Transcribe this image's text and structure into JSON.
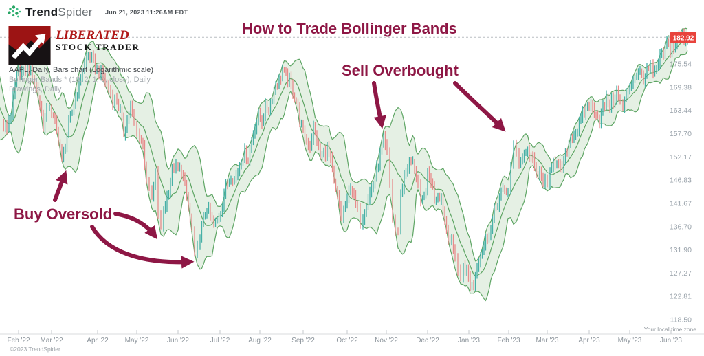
{
  "header": {
    "brand_bold": "Trend",
    "brand_light": "Spider",
    "timestamp": "Jun 21, 2023 11:26AM EDT"
  },
  "watermark": {
    "line1": "LIBERATED",
    "line2": "STOCK TRADER"
  },
  "legend": {
    "line1": "AAPL, Daily, Bars chart (Logarithmic scale)",
    "line2": "Bollinger Bands * (10, 2, 1, 0, close), Daily",
    "line3": "Drawings, Daily"
  },
  "annotations": {
    "title": "How to Trade Bollinger Bands",
    "sell": "Sell Overbought",
    "buy": "Buy Oversold",
    "color": "#8e1745"
  },
  "footer": {
    "timezone_note": "Your local time zone",
    "copyright": "©2023 TrendSpider"
  },
  "chart_data": {
    "type": "bar",
    "title": "AAPL Daily bars with Bollinger Bands (10, 2) on a logarithmic scale",
    "symbol": "AAPL",
    "timeframe": "Daily",
    "scale": "Logarithmic",
    "indicator": "Bollinger Bands (10, 2, 1, 0, close)",
    "y_axis": {
      "scale": "log",
      "current_price": "182.92",
      "ticks": [
        175.54,
        169.38,
        163.44,
        157.7,
        152.17,
        146.83,
        141.67,
        136.7,
        131.9,
        127.27,
        122.81,
        118.5
      ]
    },
    "x_axis": {
      "labels": [
        "Feb '22",
        "Mar '22",
        "Apr '22",
        "May '22",
        "Jun '22",
        "Jul '22",
        "Aug '22",
        "Sep '22",
        "Oct '22",
        "Nov '22",
        "Dec '22",
        "Jan '23",
        "Feb '23",
        "Mar '23",
        "Apr '23",
        "May '23",
        "Jun '23"
      ],
      "tick_x": [
        27,
        75,
        142,
        199,
        259,
        320,
        378,
        441,
        505,
        562,
        622,
        682,
        740,
        796,
        857,
        916,
        976
      ]
    },
    "price_path": [
      [
        -28,
        172
      ],
      [
        -20,
        169
      ],
      [
        -12,
        163
      ],
      [
        -4,
        160
      ],
      [
        3,
        160
      ],
      [
        10,
        159
      ],
      [
        16,
        163
      ],
      [
        22,
        170
      ],
      [
        27,
        174
      ],
      [
        34,
        173
      ],
      [
        40,
        176
      ],
      [
        47,
        172
      ],
      [
        53,
        169
      ],
      [
        58,
        165
      ],
      [
        63,
        160
      ],
      [
        68,
        163
      ],
      [
        72,
        165
      ],
      [
        75,
        163
      ],
      [
        80,
        160
      ],
      [
        85,
        157
      ],
      [
        90,
        151
      ],
      [
        95,
        155
      ],
      [
        100,
        160
      ],
      [
        105,
        163
      ],
      [
        110,
        167
      ],
      [
        115,
        170
      ],
      [
        120,
        174
      ],
      [
        126,
        177
      ],
      [
        131,
        178
      ],
      [
        136,
        176
      ],
      [
        141,
        174
      ],
      [
        147,
        173
      ],
      [
        153,
        171
      ],
      [
        158,
        169
      ],
      [
        164,
        166
      ],
      [
        170,
        166
      ],
      [
        175,
        163
      ],
      [
        180,
        158
      ],
      [
        185,
        161
      ],
      [
        190,
        164
      ],
      [
        195,
        160
      ],
      [
        199,
        158
      ],
      [
        203,
        157
      ],
      [
        208,
        155
      ],
      [
        213,
        147
      ],
      [
        217,
        144
      ],
      [
        221,
        143
      ],
      [
        226,
        148
      ],
      [
        230,
        140
      ],
      [
        234,
        136
      ],
      [
        238,
        140
      ],
      [
        243,
        143
      ],
      [
        248,
        147
      ],
      [
        253,
        150
      ],
      [
        259,
        149
      ],
      [
        264,
        149
      ],
      [
        269,
        145
      ],
      [
        274,
        141
      ],
      [
        279,
        136
      ],
      [
        283,
        130
      ],
      [
        287,
        132
      ],
      [
        291,
        135
      ],
      [
        296,
        138
      ],
      [
        301,
        141
      ],
      [
        306,
        139
      ],
      [
        311,
        137
      ],
      [
        316,
        138
      ],
      [
        321,
        140
      ],
      [
        326,
        144
      ],
      [
        331,
        146
      ],
      [
        336,
        148
      ],
      [
        341,
        147
      ],
      [
        346,
        149
      ],
      [
        351,
        152
      ],
      [
        356,
        153
      ],
      [
        361,
        152
      ],
      [
        366,
        156
      ],
      [
        371,
        160
      ],
      [
        376,
        162
      ],
      [
        381,
        161
      ],
      [
        386,
        164
      ],
      [
        391,
        164
      ],
      [
        396,
        167
      ],
      [
        401,
        170
      ],
      [
        406,
        171
      ],
      [
        411,
        174
      ],
      [
        416,
        172
      ],
      [
        421,
        171
      ],
      [
        426,
        168
      ],
      [
        431,
        166
      ],
      [
        436,
        161
      ],
      [
        441,
        158
      ],
      [
        446,
        156
      ],
      [
        451,
        155
      ],
      [
        456,
        159
      ],
      [
        461,
        156
      ],
      [
        466,
        152
      ],
      [
        471,
        153
      ],
      [
        476,
        154
      ],
      [
        481,
        151
      ],
      [
        486,
        146
      ],
      [
        491,
        143
      ],
      [
        496,
        139
      ],
      [
        500,
        140
      ],
      [
        505,
        142
      ],
      [
        510,
        146
      ],
      [
        515,
        143
      ],
      [
        520,
        140
      ],
      [
        524,
        138
      ],
      [
        528,
        139
      ],
      [
        533,
        142
      ],
      [
        538,
        144
      ],
      [
        543,
        146
      ],
      [
        548,
        149
      ],
      [
        553,
        153
      ],
      [
        558,
        156
      ],
      [
        563,
        153
      ],
      [
        567,
        146
      ],
      [
        571,
        139
      ],
      [
        575,
        136
      ],
      [
        579,
        136
      ],
      [
        583,
        143
      ],
      [
        588,
        148
      ],
      [
        593,
        150
      ],
      [
        598,
        151
      ],
      [
        603,
        150
      ],
      [
        608,
        146
      ],
      [
        612,
        141
      ],
      [
        617,
        143
      ],
      [
        622,
        148
      ],
      [
        627,
        147
      ],
      [
        632,
        143
      ],
      [
        637,
        144
      ],
      [
        642,
        143
      ],
      [
        647,
        138
      ],
      [
        652,
        135
      ],
      [
        657,
        133
      ],
      [
        662,
        131
      ],
      [
        666,
        128
      ],
      [
        670,
        126
      ],
      [
        674,
        129
      ],
      [
        679,
        128
      ],
      [
        684,
        125
      ],
      [
        689,
        125
      ],
      [
        694,
        129
      ],
      [
        699,
        131
      ],
      [
        704,
        133
      ],
      [
        709,
        135
      ],
      [
        714,
        136
      ],
      [
        719,
        140
      ],
      [
        724,
        142
      ],
      [
        729,
        144
      ],
      [
        734,
        144
      ],
      [
        739,
        145
      ],
      [
        743,
        150
      ],
      [
        747,
        154
      ],
      [
        751,
        153
      ],
      [
        755,
        151
      ],
      [
        760,
        152
      ],
      [
        765,
        154
      ],
      [
        770,
        153
      ],
      [
        775,
        151
      ],
      [
        780,
        148
      ],
      [
        785,
        148
      ],
      [
        790,
        147
      ],
      [
        796,
        145
      ],
      [
        800,
        149
      ],
      [
        805,
        152
      ],
      [
        810,
        150
      ],
      [
        815,
        149
      ],
      [
        820,
        151
      ],
      [
        825,
        154
      ],
      [
        830,
        157
      ],
      [
        835,
        158
      ],
      [
        840,
        159
      ],
      [
        845,
        161
      ],
      [
        850,
        163
      ],
      [
        857,
        165
      ],
      [
        862,
        164
      ],
      [
        867,
        163
      ],
      [
        872,
        161
      ],
      [
        877,
        164
      ],
      [
        882,
        166
      ],
      [
        887,
        165
      ],
      [
        892,
        166
      ],
      [
        897,
        168
      ],
      [
        902,
        165
      ],
      [
        906,
        164
      ],
      [
        911,
        167
      ],
      [
        916,
        170
      ],
      [
        921,
        172
      ],
      [
        926,
        173
      ],
      [
        931,
        173
      ],
      [
        936,
        172
      ],
      [
        941,
        173
      ],
      [
        946,
        175
      ],
      [
        950,
        172
      ],
      [
        955,
        174
      ],
      [
        960,
        177
      ],
      [
        965,
        178
      ],
      [
        970,
        181
      ],
      [
        975,
        180
      ],
      [
        980,
        180
      ],
      [
        985,
        182
      ],
      [
        990,
        184
      ],
      [
        995,
        183
      ],
      [
        1000,
        183
      ]
    ],
    "band": {
      "period": 10,
      "mult": 2
    },
    "colors": {
      "up_bar": "#46b0a6",
      "down_bar": "#e78b8b",
      "band_line": "#55a05c",
      "band_fill": "rgba(96,160,90,0.16)",
      "current_line": "#b9bdc2",
      "badge": "#e8433c",
      "axis_text": "#9aa3ab"
    }
  }
}
